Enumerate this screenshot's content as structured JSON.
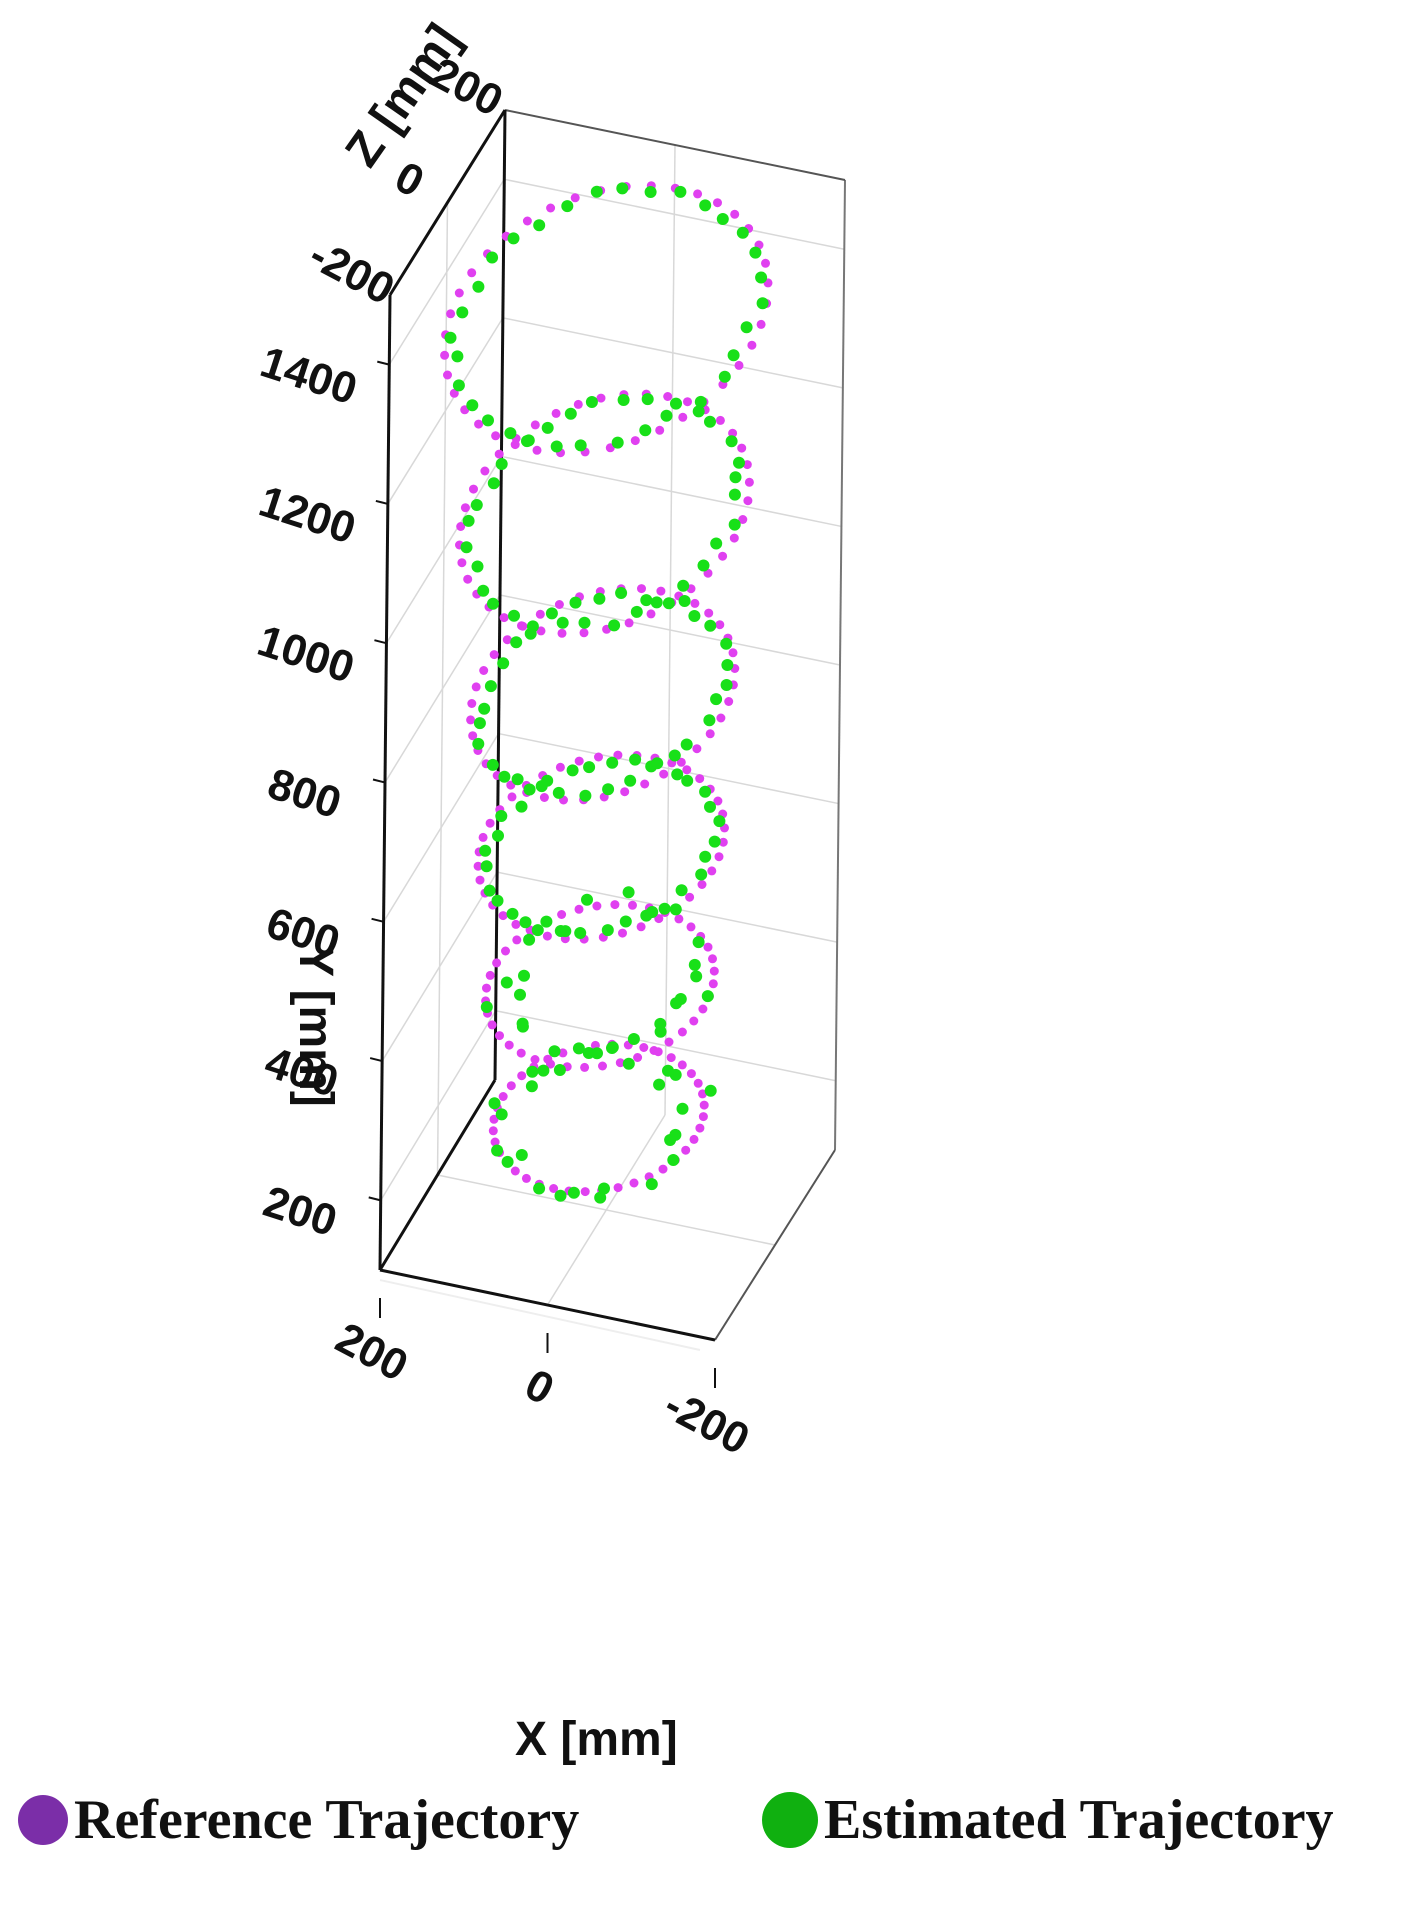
{
  "chart_data": {
    "type": "scatter3d",
    "axes": {
      "x": {
        "label": "X [mm]",
        "ticks": [
          "200",
          "0",
          "-200"
        ],
        "range": [
          200,
          -200
        ]
      },
      "y": {
        "label": "Y [mm]",
        "ticks": [
          "200",
          "400",
          "600",
          "800",
          "1000",
          "1200",
          "1400"
        ],
        "range": [
          100,
          1500
        ]
      },
      "z": {
        "label": "Z [mm]",
        "ticks": [
          "-200",
          "0",
          "200"
        ],
        "range": [
          -200,
          200
        ]
      }
    },
    "grid": true,
    "legend": {
      "placement": "bottom"
    },
    "series": [
      {
        "name": "Reference Trajectory",
        "color": "#e040f0",
        "legend_color": "#7b2ea8",
        "kind": "reference-spiral",
        "loops": [
          {
            "y_center": 1380,
            "x_amp": 185,
            "z_amp": 150,
            "y_amp": 100
          },
          {
            "y_center": 1100,
            "x_amp": 165,
            "z_amp": 140,
            "y_amp": 85
          },
          {
            "y_center": 840,
            "x_amp": 150,
            "z_amp": 130,
            "y_amp": 70
          },
          {
            "y_center": 620,
            "x_amp": 140,
            "z_amp": 120,
            "y_amp": 55
          },
          {
            "y_center": 420,
            "x_amp": 130,
            "z_amp": 110,
            "y_amp": 45
          },
          {
            "y_center": 230,
            "x_amp": 120,
            "z_amp": 100,
            "y_amp": 40
          }
        ]
      },
      {
        "name": "Estimated Trajectory",
        "color": "#18e018",
        "legend_color": "#10b010",
        "kind": "estimated-spiral"
      }
    ]
  }
}
